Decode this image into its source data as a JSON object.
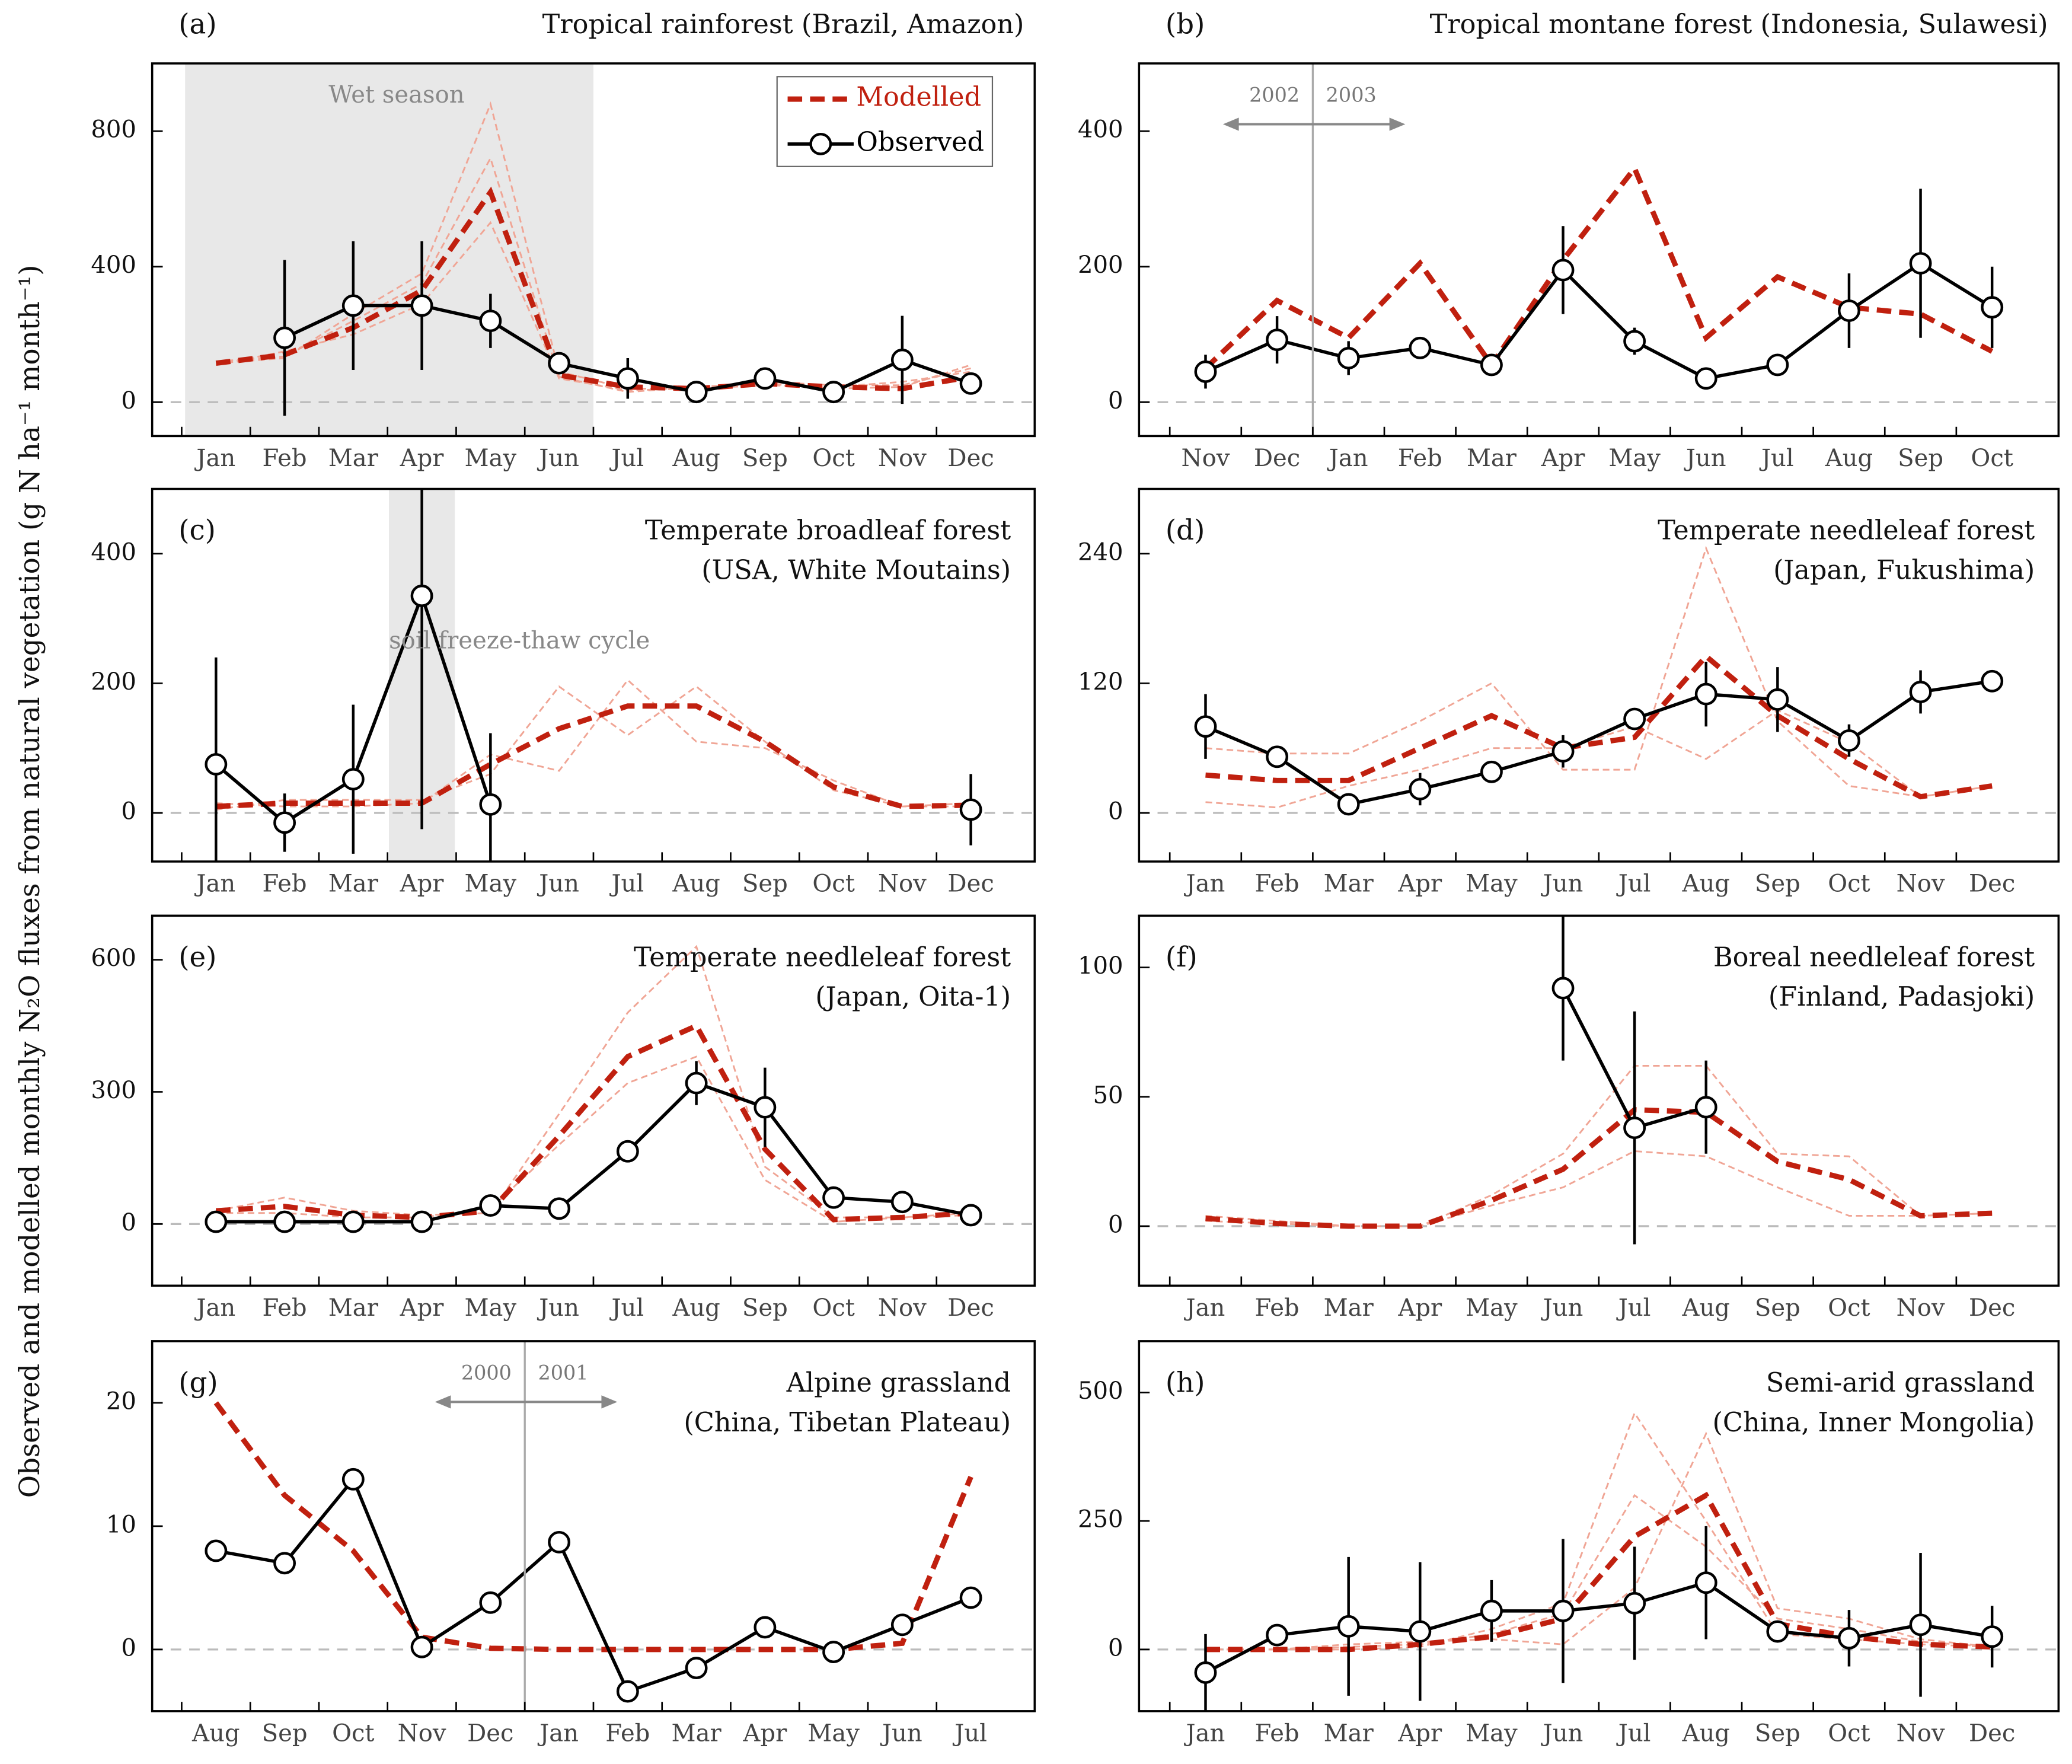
{
  "y_label": "Observed and modelled monthly N₂O fluxes from natural vegetation (g N ha⁻¹ month⁻¹)",
  "chart_data": [
    {
      "type": "line",
      "label": "(a)",
      "title": "Tropical rainforest (Brazil, Amazon)",
      "categories": [
        "Jan",
        "Feb",
        "Mar",
        "Apr",
        "May",
        "Jun",
        "Jul",
        "Aug",
        "Sep",
        "Oct",
        "Nov",
        "Dec"
      ],
      "ylim": [
        -100,
        1000
      ],
      "yticks": [
        0,
        400,
        800
      ],
      "zero_line": true,
      "legend": "upper right",
      "annotation": "Wet season",
      "series": [
        {
          "name": "Modelled",
          "color": "#c0200f",
          "dashed": true,
          "values": [
            115,
            140,
            220,
            330,
            620,
            80,
            45,
            40,
            55,
            45,
            40,
            75
          ]
        },
        {
          "name": "Observed",
          "color": "#000000",
          "markers": true,
          "values": [
            null,
            190,
            285,
            285,
            240,
            115,
            70,
            30,
            70,
            30,
            125,
            55
          ],
          "errors": [
            null,
            230,
            190,
            190,
            80,
            20,
            60,
            10,
            15,
            20,
            130,
            15
          ]
        }
      ],
      "ensemble": {
        "color": "#f0a595",
        "values": [
          [
            115,
            130,
            260,
            380,
            880,
            90,
            40,
            40,
            60,
            50,
            50,
            100
          ],
          [
            110,
            150,
            200,
            290,
            530,
            70,
            35,
            40,
            50,
            45,
            60,
            90
          ],
          [
            120,
            135,
            240,
            350,
            720,
            75,
            30,
            45,
            55,
            40,
            45,
            110
          ]
        ]
      }
    },
    {
      "type": "line",
      "label": "(b)",
      "title": "Tropical montane forest (Indonesia, Sulawesi)",
      "categories": [
        "Nov",
        "Dec",
        "Jan",
        "Feb",
        "Mar",
        "Apr",
        "May",
        "Jun",
        "Jul",
        "Aug",
        "Sep",
        "Oct"
      ],
      "ylim": [
        -50,
        500
      ],
      "yticks": [
        0,
        200,
        400
      ],
      "zero_line": true,
      "year_labels": [
        "2002",
        "2003"
      ],
      "series": [
        {
          "color": "#c0200f",
          "dashed": true,
          "values": [
            50,
            150,
            95,
            205,
            55,
            210,
            345,
            95,
            185,
            140,
            130,
            75
          ]
        },
        {
          "color": "#000000",
          "markers": true,
          "values": [
            45,
            92,
            65,
            80,
            55,
            195,
            90,
            35,
            55,
            135,
            205,
            140
          ],
          "errors": [
            25,
            35,
            25,
            10,
            10,
            65,
            20,
            5,
            5,
            55,
            110,
            60
          ]
        }
      ]
    },
    {
      "type": "line",
      "label": "(c)",
      "title": "Temperate broadleaf forest",
      "subtitle": "(USA, White Moutains)",
      "categories": [
        "Jan",
        "Feb",
        "Mar",
        "Apr",
        "May",
        "Jun",
        "Jul",
        "Aug",
        "Sep",
        "Oct",
        "Nov",
        "Dec"
      ],
      "ylim": [
        -75,
        500
      ],
      "yticks": [
        0,
        200,
        400
      ],
      "zero_line": true,
      "annotation": "soil  freeze-thaw cycle",
      "series": [
        {
          "color": "#c0200f",
          "dashed": true,
          "values": [
            10,
            15,
            15,
            15,
            75,
            130,
            165,
            165,
            110,
            40,
            10,
            12
          ]
        },
        {
          "color": "#000000",
          "markers": true,
          "values": [
            75,
            -15,
            52,
            335,
            13,
            null,
            null,
            null,
            null,
            null,
            null,
            5
          ],
          "errors": [
            165,
            45,
            115,
            360,
            110,
            null,
            null,
            null,
            null,
            null,
            null,
            55
          ]
        }
      ],
      "ensemble": {
        "color": "#f0a595",
        "values": [
          [
            5,
            20,
            20,
            20,
            60,
            195,
            120,
            195,
            110,
            35,
            10,
            15
          ],
          [
            15,
            10,
            10,
            15,
            90,
            65,
            205,
            110,
            100,
            50,
            10,
            10
          ]
        ]
      }
    },
    {
      "type": "line",
      "label": "(d)",
      "title": "Temperate needleleaf forest",
      "subtitle": "(Japan, Fukushima)",
      "categories": [
        "Jan",
        "Feb",
        "Mar",
        "Apr",
        "May",
        "Jun",
        "Jul",
        "Aug",
        "Sep",
        "Oct",
        "Nov",
        "Dec"
      ],
      "ylim": [
        -45,
        300
      ],
      "yticks": [
        0,
        120,
        240
      ],
      "zero_line": true,
      "series": [
        {
          "color": "#c0200f",
          "dashed": true,
          "values": [
            35,
            30,
            30,
            60,
            90,
            60,
            70,
            145,
            90,
            50,
            15,
            25
          ]
        },
        {
          "color": "#000000",
          "markers": true,
          "values": [
            80,
            52,
            8,
            22,
            38,
            57,
            87,
            110,
            105,
            67,
            112,
            122
          ],
          "errors": [
            30,
            5,
            10,
            15,
            8,
            15,
            10,
            30,
            30,
            15,
            20,
            8
          ]
        }
      ],
      "ensemble": {
        "color": "#f0a595",
        "values": [
          [
            60,
            55,
            55,
            85,
            120,
            40,
            40,
            245,
            85,
            25,
            15,
            25
          ],
          [
            10,
            5,
            25,
            40,
            60,
            60,
            80,
            50,
            95,
            65,
            15,
            25
          ]
        ]
      }
    },
    {
      "type": "line",
      "label": "(e)",
      "title": "Temperate needleleaf forest",
      "subtitle": "(Japan, Oita-1)",
      "categories": [
        "Jan",
        "Feb",
        "Mar",
        "Apr",
        "May",
        "Jun",
        "Jul",
        "Aug",
        "Sep",
        "Oct",
        "Nov",
        "Dec"
      ],
      "ylim": [
        -140,
        700
      ],
      "yticks": [
        0,
        300,
        600
      ],
      "zero_line": true,
      "series": [
        {
          "color": "#c0200f",
          "dashed": true,
          "values": [
            30,
            40,
            20,
            15,
            30,
            200,
            380,
            450,
            170,
            10,
            15,
            25
          ]
        },
        {
          "color": "#000000",
          "markers": true,
          "values": [
            5,
            5,
            5,
            5,
            42,
            35,
            165,
            320,
            265,
            60,
            50,
            20
          ],
          "errors": [
            20,
            10,
            15,
            15,
            15,
            8,
            10,
            50,
            90,
            15,
            5,
            10
          ]
        }
      ],
      "ensemble": {
        "color": "#f0a595",
        "values": [
          [
            30,
            60,
            30,
            20,
            25,
            250,
            480,
            630,
            130,
            15,
            15,
            25
          ],
          [
            25,
            25,
            15,
            15,
            35,
            180,
            320,
            380,
            100,
            5,
            15,
            20
          ]
        ]
      }
    },
    {
      "type": "line",
      "label": "(f)",
      "title": "Boreal needleleaf forest",
      "subtitle": "(Finland, Padasjoki)",
      "categories": [
        "Jan",
        "Feb",
        "Mar",
        "Apr",
        "May",
        "Jun",
        "Jul",
        "Aug",
        "Sep",
        "Oct",
        "Nov",
        "Dec"
      ],
      "ylim": [
        -23,
        120
      ],
      "yticks": [
        0,
        50,
        100
      ],
      "zero_line": true,
      "series": [
        {
          "color": "#c0200f",
          "dashed": true,
          "values": [
            3,
            1,
            0,
            0,
            10,
            22,
            45,
            44,
            25,
            18,
            4,
            5
          ]
        },
        {
          "color": "#000000",
          "markers": true,
          "values": [
            null,
            null,
            null,
            null,
            null,
            92,
            38,
            46,
            null,
            null,
            null,
            null
          ],
          "errors": [
            null,
            null,
            null,
            null,
            null,
            28,
            45,
            18,
            null,
            null,
            null,
            null
          ]
        }
      ],
      "ensemble": {
        "color": "#f0a595",
        "values": [
          [
            4,
            2,
            0,
            0,
            12,
            28,
            62,
            62,
            28,
            27,
            4,
            5
          ],
          [
            2,
            1,
            0,
            0,
            8,
            15,
            29,
            27,
            15,
            4,
            4,
            5
          ]
        ]
      }
    },
    {
      "type": "line",
      "label": "(g)",
      "title": "Alpine grassland",
      "subtitle": "(China, Tibetan Plateau)",
      "categories": [
        "Aug",
        "Sep",
        "Oct",
        "Nov",
        "Dec",
        "Jan",
        "Feb",
        "Mar",
        "Apr",
        "May",
        "Jun",
        "Jul"
      ],
      "ylim": [
        -5,
        25
      ],
      "yticks": [
        0,
        10,
        20
      ],
      "zero_line": true,
      "year_labels": [
        "2000",
        "2001"
      ],
      "series": [
        {
          "color": "#c0200f",
          "dashed": true,
          "values": [
            20,
            12.5,
            8,
            1,
            0.1,
            0,
            0,
            0,
            0,
            0,
            0.5,
            14
          ]
        },
        {
          "color": "#000000",
          "markers": true,
          "values": [
            8,
            7,
            13.8,
            0.2,
            3.8,
            8.7,
            -3.4,
            -1.5,
            1.8,
            -0.2,
            2,
            4.2
          ]
        }
      ]
    },
    {
      "type": "line",
      "label": "(h)",
      "title": "Semi-arid grassland",
      "subtitle": "(China, Inner Mongolia)",
      "categories": [
        "Jan",
        "Feb",
        "Mar",
        "Apr",
        "May",
        "Jun",
        "Jul",
        "Aug",
        "Sep",
        "Oct",
        "Nov",
        "Dec"
      ],
      "ylim": [
        -120,
        600
      ],
      "yticks": [
        0,
        250,
        500
      ],
      "zero_line": true,
      "series": [
        {
          "color": "#c0200f",
          "dashed": true,
          "values": [
            0,
            0,
            0,
            10,
            25,
            60,
            220,
            300,
            50,
            25,
            10,
            5
          ]
        },
        {
          "color": "#000000",
          "markers": true,
          "values": [
            -45,
            28,
            45,
            35,
            75,
            75,
            90,
            130,
            35,
            22,
            48,
            25
          ],
          "errors": [
            75,
            20,
            135,
            135,
            60,
            140,
            110,
            110,
            10,
            55,
            140,
            60
          ]
        }
      ],
      "ensemble": {
        "color": "#f0a595",
        "values": [
          [
            0,
            0,
            0,
            5,
            40,
            90,
            460,
            250,
            30,
            20,
            10,
            5
          ],
          [
            0,
            0,
            10,
            15,
            20,
            10,
            120,
            420,
            80,
            60,
            20,
            5
          ],
          [
            0,
            0,
            5,
            10,
            30,
            70,
            300,
            200,
            60,
            40,
            15,
            5
          ]
        ]
      }
    }
  ]
}
